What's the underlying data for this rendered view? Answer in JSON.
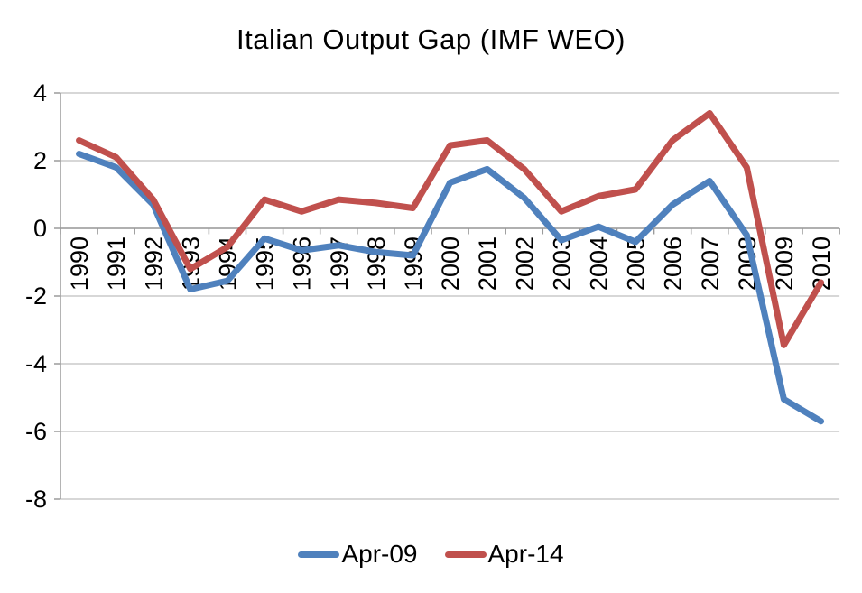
{
  "chart": {
    "title": "Italian Output Gap (IMF WEO)"
  },
  "chart_data": {
    "type": "line",
    "title": "Italian Output Gap (IMF WEO)",
    "categories": [
      "1990",
      "1991",
      "1992",
      "1993",
      "1994",
      "1995",
      "1996",
      "1997",
      "1998",
      "1999",
      "2000",
      "2001",
      "2002",
      "2003",
      "2004",
      "2005",
      "2006",
      "2007",
      "2008",
      "2009",
      "2010"
    ],
    "series": [
      {
        "name": "Apr-09",
        "color": "#4F81BD",
        "values": [
          2.2,
          1.8,
          0.7,
          -1.8,
          -1.55,
          -0.3,
          -0.65,
          -0.5,
          -0.7,
          -0.8,
          1.35,
          1.75,
          0.9,
          -0.35,
          0.05,
          -0.4,
          0.7,
          1.4,
          -0.2,
          -5.05,
          -5.7
        ]
      },
      {
        "name": "Apr-14",
        "color": "#C0504D",
        "values": [
          2.6,
          2.1,
          0.85,
          -1.2,
          -0.55,
          0.85,
          0.5,
          0.85,
          0.75,
          0.6,
          2.45,
          2.6,
          1.75,
          0.5,
          0.95,
          1.15,
          2.6,
          3.4,
          1.8,
          -3.45,
          -1.6
        ]
      }
    ],
    "ylim": [
      -8,
      4
    ],
    "ytick_step": 2,
    "yticks": [
      4,
      2,
      0,
      -2,
      -4,
      -6,
      -8
    ],
    "grid": true,
    "legend_position": "bottom",
    "xlabel": "",
    "ylabel": ""
  },
  "colors": {
    "grid": "#BFBFBF",
    "axis": "#9B9B9B",
    "text": "#000000",
    "background": "#FFFFFF"
  }
}
